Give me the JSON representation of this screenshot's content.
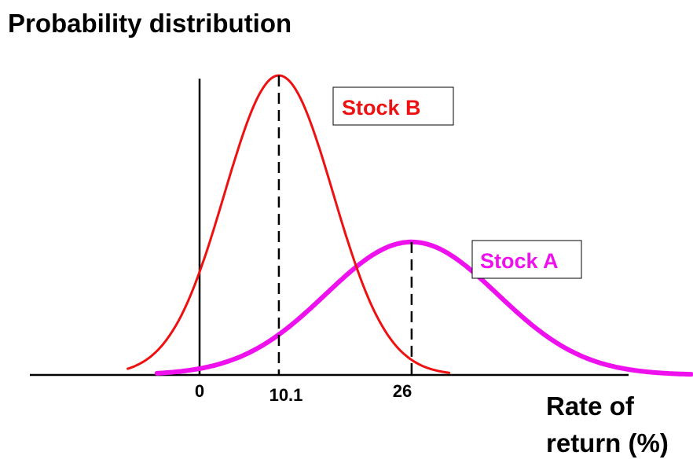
{
  "chart_data": {
    "type": "line",
    "title": "Probability distribution",
    "xlabel": [
      "Rate of",
      "return (%)"
    ],
    "x_ticks": [
      "0",
      "10.1",
      "26"
    ],
    "xlim": [
      -23.3,
      59.7
    ],
    "series": [
      {
        "name": "Stock B",
        "color": "#ee1111",
        "mean": 10.1,
        "sd": 6.5,
        "peak": 1.0,
        "x_range": [
          -8.0,
          30.5
        ],
        "line_width": 3
      },
      {
        "name": "Stock A",
        "color": "#ee11ee",
        "mean": 26,
        "sd": 10.3,
        "peak": 0.444,
        "x_range": [
          -4.5,
          59.5
        ],
        "line_width": 6
      }
    ]
  }
}
